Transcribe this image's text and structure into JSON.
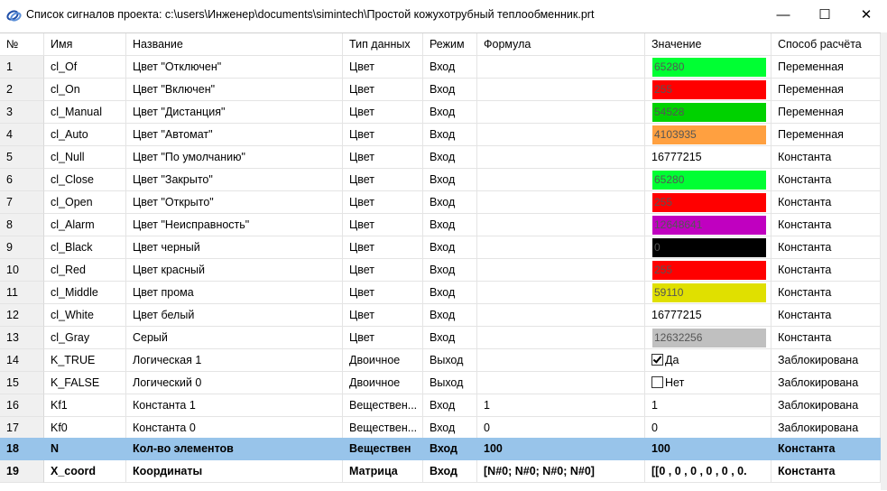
{
  "window": {
    "title": "Список сигналов проекта: c:\\users\\Инженер\\documents\\simintech\\Простой кожухотрубный теплообменник.prt",
    "minimize": "—",
    "maximize": "☐",
    "close": "✕"
  },
  "columns": [
    "№",
    "Имя",
    "Название",
    "Тип данных",
    "Режим",
    "Формула",
    "Значение",
    "Способ расчёта"
  ],
  "colors": {
    "selected_row": "#98c4ea",
    "green": "#00ff33",
    "red": "#ff0000",
    "dark_green": "#00c800",
    "orange": "#ffa040",
    "purple": "#c000c0",
    "black": "#000000",
    "yellow": "#e0e000",
    "gray": "#c0c0c0"
  },
  "rows": [
    {
      "num": "1",
      "name": "cl_Of",
      "title": "Цвет \"Отключен\"",
      "type": "Цвет",
      "mode": "Вход",
      "formula": "",
      "value": "65280",
      "color": "#00ff33",
      "calc": "Переменная"
    },
    {
      "num": "2",
      "name": "cl_On",
      "title": "Цвет \"Включен\"",
      "type": "Цвет",
      "mode": "Вход",
      "formula": "",
      "value": "255",
      "color": "#ff0000",
      "calc": "Переменная"
    },
    {
      "num": "3",
      "name": "cl_Manual",
      "title": "Цвет \"Дистанция\"",
      "type": "Цвет",
      "mode": "Вход",
      "formula": "",
      "value": "54528",
      "color": "#00d200",
      "calc": "Переменная"
    },
    {
      "num": "4",
      "name": "cl_Auto",
      "title": "Цвет \"Автомат\"",
      "type": "Цвет",
      "mode": "Вход",
      "formula": "",
      "value": "4103935",
      "color": "#ffa040",
      "calc": "Переменная"
    },
    {
      "num": "5",
      "name": "cl_Null",
      "title": "Цвет \"По умолчанию\"",
      "type": "Цвет",
      "mode": "Вход",
      "formula": "",
      "value": "16777215",
      "color": "",
      "calc": "Константа"
    },
    {
      "num": "6",
      "name": "cl_Close",
      "title": "Цвет \"Закрыто\"",
      "type": "Цвет",
      "mode": "Вход",
      "formula": "",
      "value": "65280",
      "color": "#00ff33",
      "calc": "Константа"
    },
    {
      "num": "7",
      "name": "cl_Open",
      "title": "Цвет \"Открыто\"",
      "type": "Цвет",
      "mode": "Вход",
      "formula": "",
      "value": "255",
      "color": "#ff0000",
      "calc": "Константа"
    },
    {
      "num": "8",
      "name": "cl_Alarm",
      "title": "Цвет \"Неисправность\"",
      "type": "Цвет",
      "mode": "Вход",
      "formula": "",
      "value": "12648641",
      "color": "#c000c0",
      "calc": "Константа"
    },
    {
      "num": "9",
      "name": "cl_Black",
      "title": "Цвет черный",
      "type": "Цвет",
      "mode": "Вход",
      "formula": "",
      "value": "0",
      "color": "#000000",
      "calc": "Константа"
    },
    {
      "num": "10",
      "name": "cl_Red",
      "title": "Цвет красный",
      "type": "Цвет",
      "mode": "Вход",
      "formula": "",
      "value": "255",
      "color": "#ff0000",
      "calc": "Константа"
    },
    {
      "num": "11",
      "name": "cl_Middle",
      "title": "Цвет прома",
      "type": "Цвет",
      "mode": "Вход",
      "formula": "",
      "value": "59110",
      "color": "#e0e000",
      "calc": "Константа"
    },
    {
      "num": "12",
      "name": "cl_White",
      "title": "Цвет белый",
      "type": "Цвет",
      "mode": "Вход",
      "formula": "",
      "value": "16777215",
      "color": "",
      "calc": "Константа"
    },
    {
      "num": "13",
      "name": "cl_Gray",
      "title": "Серый",
      "type": "Цвет",
      "mode": "Вход",
      "formula": "",
      "value": "12632256",
      "color": "#c0c0c0",
      "calc": "Константа"
    },
    {
      "num": "14",
      "name": "K_TRUE",
      "title": "Логическая 1",
      "type": "Двоичное",
      "mode": "Выход",
      "formula": "",
      "value": "Да",
      "check": true,
      "calc": "Заблокирована"
    },
    {
      "num": "15",
      "name": "K_FALSE",
      "title": "Логический 0",
      "type": "Двоичное",
      "mode": "Выход",
      "formula": "",
      "value": "Нет",
      "check": false,
      "calc": "Заблокирована"
    },
    {
      "num": "16",
      "name": "Kf1",
      "title": "Константа 1",
      "type": "Веществен...",
      "mode": "Вход",
      "formula": "1",
      "value": "1",
      "calc": "Заблокирована"
    },
    {
      "num": "17",
      "name": "Kf0",
      "title": "Константа 0",
      "type": "Веществен...",
      "mode": "Вход",
      "formula": "0",
      "value": "0",
      "calc": "Заблокирована"
    },
    {
      "num": "18",
      "name": "N",
      "title": "Кол-во элементов",
      "type": "Веществен",
      "mode": "Вход",
      "formula": "100",
      "value": "100",
      "calc": "Константа",
      "selected": true,
      "bold": true
    },
    {
      "num": "19",
      "name": "X_coord",
      "title": "Координаты",
      "type": "Матрица",
      "mode": "Вход",
      "formula": "[N#0; N#0; N#0; N#0]",
      "value": "[[0 , 0 , 0 , 0 , 0 , 0.",
      "calc": "Константа",
      "bold": true
    }
  ]
}
